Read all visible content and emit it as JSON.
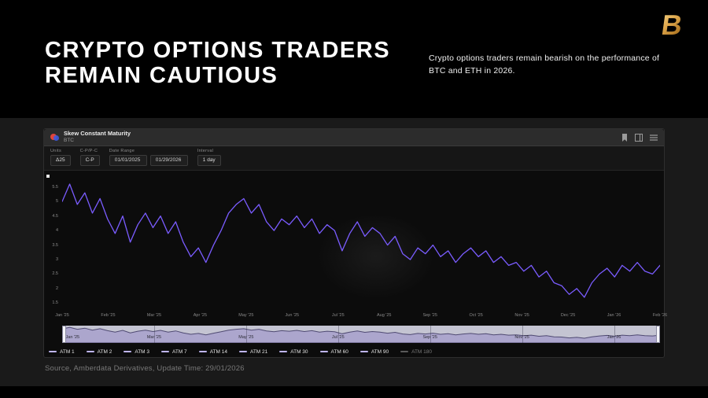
{
  "header": {
    "title_line1": "CRYPTO OPTIONS TRADERS",
    "title_line2": "REMAIN CAUTIOUS",
    "subtitle": "Crypto options traders remain bearish on the performance of BTC and ETH in 2026.",
    "logo_text": "B"
  },
  "widget": {
    "title": "Skew Constant Maturity",
    "asset": "BTC",
    "toolbar": {
      "units_label": "Units",
      "units_value": "Δ25",
      "cp_label": "C-P/P-C",
      "cp_value": "C-P",
      "date_range_label": "Date Range",
      "date_start": "01/01/2025",
      "date_end": "01/29/2026",
      "interval_label": "Interval",
      "interval_value": "1 day"
    },
    "legend": [
      {
        "label": "ATM 1",
        "color": "#bfb6f2",
        "active": true
      },
      {
        "label": "ATM 2",
        "color": "#bfb6f2",
        "active": true
      },
      {
        "label": "ATM 3",
        "color": "#bfb6f2",
        "active": true
      },
      {
        "label": "ATM 7",
        "color": "#bfb6f2",
        "active": true
      },
      {
        "label": "ATM 14",
        "color": "#bfb6f2",
        "active": true
      },
      {
        "label": "ATM 21",
        "color": "#bfb6f2",
        "active": true
      },
      {
        "label": "ATM 30",
        "color": "#bfb6f2",
        "active": true
      },
      {
        "label": "ATM 60",
        "color": "#bfb6f2",
        "active": true
      },
      {
        "label": "ATM 90",
        "color": "#bfb6f2",
        "active": true
      },
      {
        "label": "ATM 180",
        "color": "#5a5a5a",
        "active": false
      }
    ]
  },
  "chart_data": {
    "type": "line",
    "title": "Skew Constant Maturity (BTC, Δ25 C-P, 1 day)",
    "x_labels": [
      "Jan '25",
      "Feb '25",
      "Mar '25",
      "Apr '25",
      "May '25",
      "Jun '25",
      "Jul '25",
      "Aug '25",
      "Sep '25",
      "Oct '25",
      "Nov '25",
      "Dec '25",
      "Jan '26",
      "Feb '26"
    ],
    "values": [
      5.0,
      5.6,
      4.9,
      5.3,
      4.6,
      5.1,
      4.4,
      3.9,
      4.5,
      3.6,
      4.2,
      4.6,
      4.1,
      4.5,
      3.9,
      4.3,
      3.6,
      3.1,
      3.4,
      2.9,
      3.5,
      4.0,
      4.6,
      4.9,
      5.1,
      4.6,
      4.9,
      4.3,
      4.0,
      4.4,
      4.2,
      4.5,
      4.1,
      4.4,
      3.9,
      4.2,
      4.0,
      3.3,
      3.9,
      4.3,
      3.8,
      4.1,
      3.9,
      3.5,
      3.8,
      3.2,
      3.0,
      3.4,
      3.2,
      3.5,
      3.1,
      3.3,
      2.9,
      3.2,
      3.4,
      3.1,
      3.3,
      2.9,
      3.1,
      2.8,
      2.9,
      2.6,
      2.8,
      2.4,
      2.6,
      2.2,
      2.1,
      1.8,
      2.0,
      1.7,
      2.2,
      2.5,
      2.7,
      2.4,
      2.8,
      2.6,
      2.9,
      2.6,
      2.5,
      2.8
    ],
    "ylim": [
      1.4,
      5.9
    ],
    "y_ticks": [
      5.5,
      5,
      4.5,
      4,
      3.5,
      3,
      2.5,
      2,
      1.5
    ],
    "nav_ylim": [
      0,
      6.2
    ],
    "navigator_labels": [
      "Jan '25",
      "Mar '25",
      "May '25",
      "Jul '25",
      "Sep '25",
      "Nov '25",
      "Jan '26"
    ],
    "line_color": "#7a5cff",
    "nav_fill": "#aca6cd",
    "nav_line": "#4f4a72",
    "legend_position": "bottom",
    "grid": false
  },
  "footer": {
    "source": "Source, Amberdata Derivatives, Update Time: 29/01/2026"
  }
}
